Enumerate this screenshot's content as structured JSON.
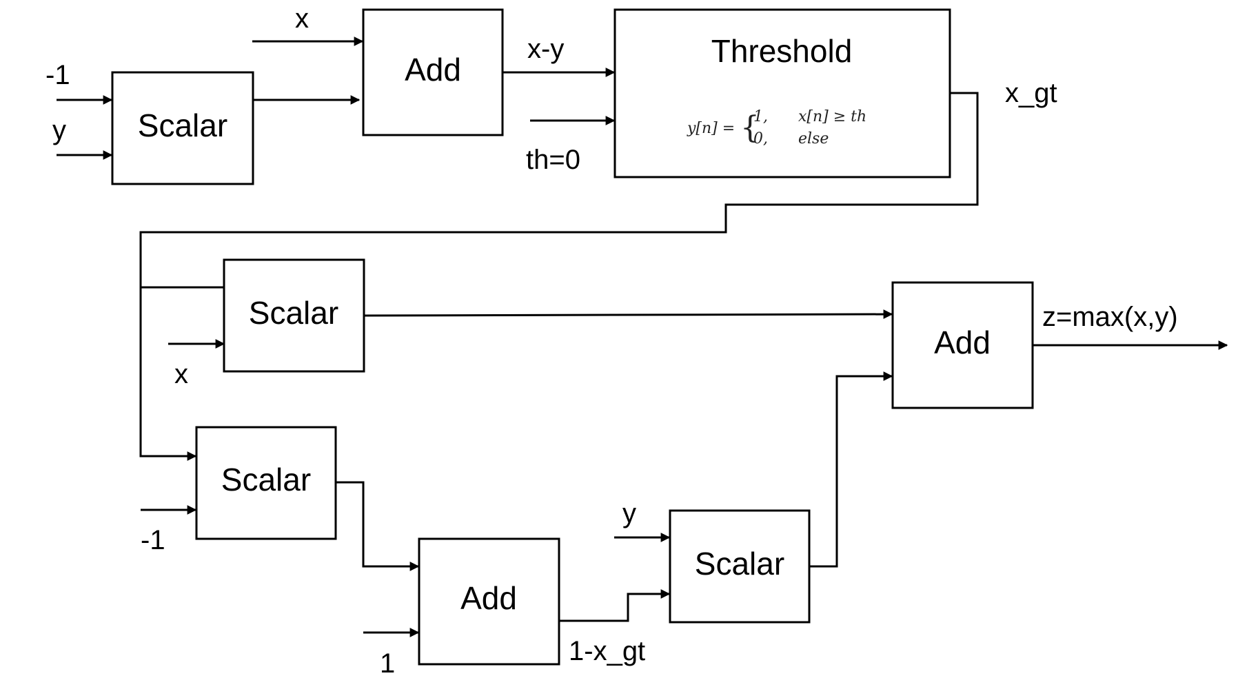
{
  "blocks": {
    "scalar_neg_y": "Scalar",
    "add_x_minus_y": "Add",
    "threshold": "Threshold",
    "scalar_x_gt_x": "Scalar",
    "scalar_neg_x_gt": "Scalar",
    "add_one_minus": "Add",
    "scalar_y_gate": "Scalar",
    "add_output": "Add"
  },
  "threshold_formula": {
    "lhs": "y[n] =",
    "case1_value": "1,",
    "case1_condition": "x[n] ≥ th",
    "case2_value": "0,",
    "case2_condition": "else"
  },
  "signals": {
    "neg_one_top": "-1",
    "y_top": "y",
    "x_top": "x",
    "x_minus_y": "x-y",
    "threshold_param": "th=0",
    "x_gt": "x_gt",
    "x_mid": "x",
    "neg_one_mid": "-1",
    "one_bottom": "1",
    "y_bottom": "y",
    "one_minus_x_gt": "1-x_gt",
    "output": "z=max(x,y)"
  }
}
